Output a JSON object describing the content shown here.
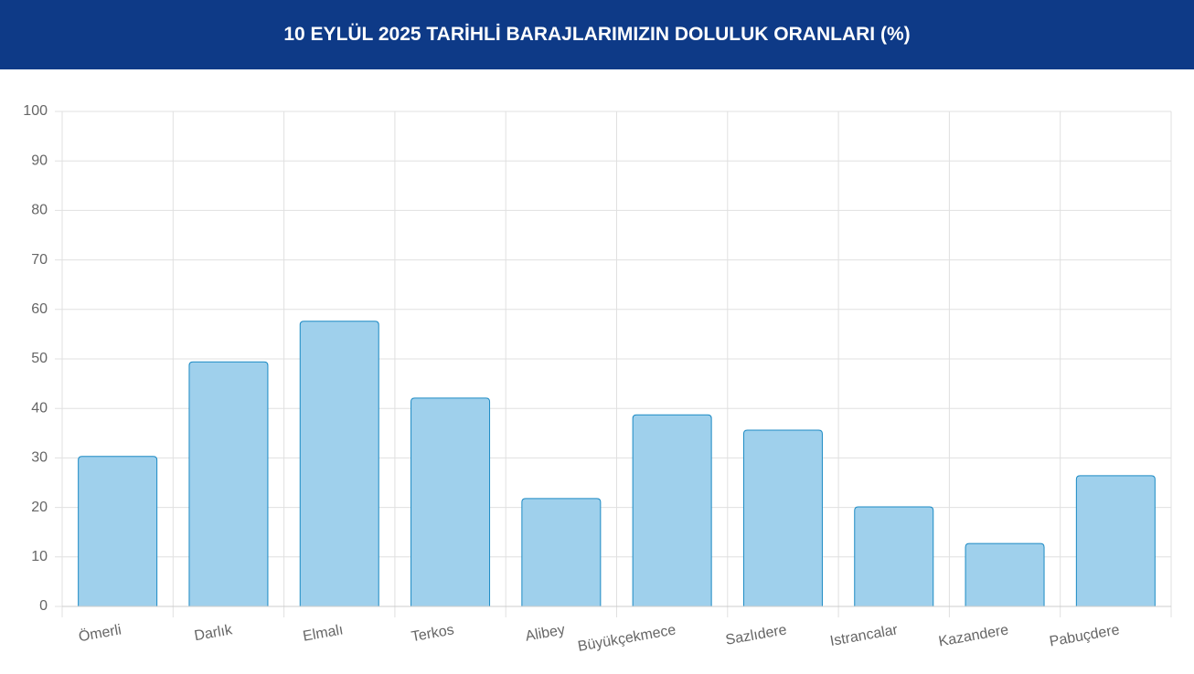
{
  "chart_data": {
    "type": "bar",
    "title": "10 EYLÜL 2025 TARİHLİ BARAJLARIMIZIN DOLULUK ORANLARI (%)",
    "categories": [
      "Ömerli",
      "Darlık",
      "Elmalı",
      "Terkos",
      "Alibey",
      "Büyükçekmece",
      "Sazlıdere",
      "Istrancalar",
      "Kazandere",
      "Pabuçdere"
    ],
    "values": [
      30.3,
      49.4,
      57.6,
      42.1,
      21.8,
      38.7,
      35.6,
      20.1,
      12.7,
      26.4
    ],
    "color": "#9dcfec",
    "border_color": "#1c8ac4",
    "ylim": [
      0,
      100
    ],
    "yticks": [
      0,
      10,
      20,
      30,
      40,
      50,
      60,
      70,
      80,
      90,
      100
    ],
    "grid": true
  }
}
